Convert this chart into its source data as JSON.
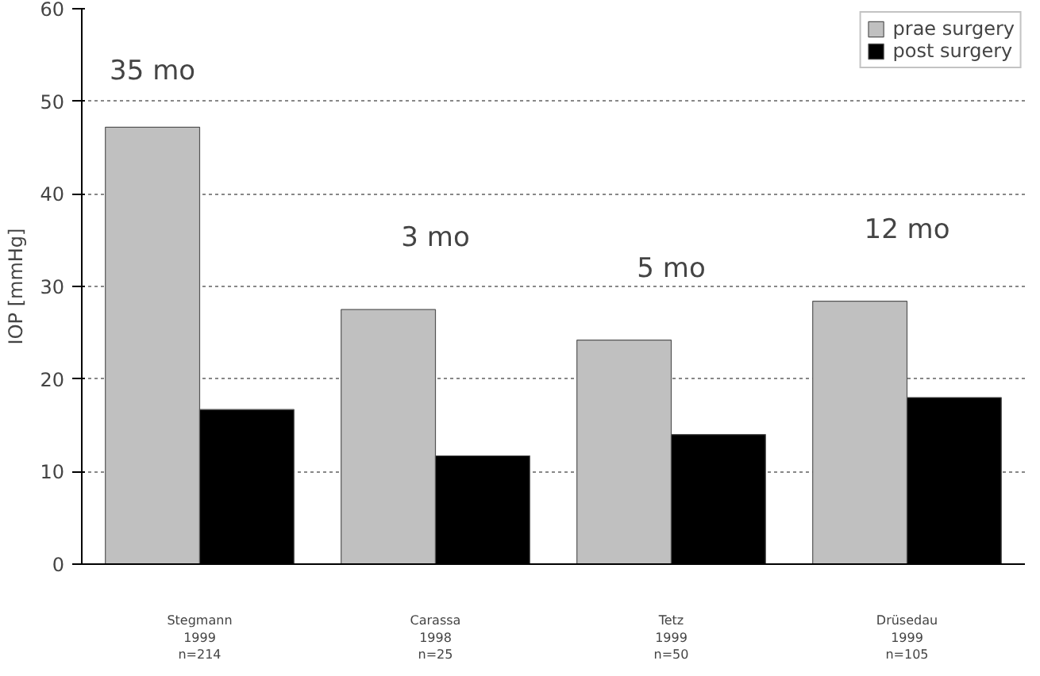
{
  "chart_data": {
    "type": "bar",
    "ylabel": "IOP [mmHg]",
    "categories": [
      "Stegmann\n1999\nn=214",
      "Carassa\n1998\nn=25",
      "Tetz\n1999\nn=50",
      "Drüsedau\n1999\nn=105"
    ],
    "series": [
      {
        "name": "prae surgery",
        "color": "#c0c0c0",
        "values": [
          47.2,
          27.5,
          24.2,
          28.4
        ]
      },
      {
        "name": "post surgery",
        "color": "#000000",
        "values": [
          16.7,
          11.7,
          14.0,
          18.0
        ]
      }
    ],
    "ylim": [
      0,
      60
    ],
    "yticks": [
      0,
      10,
      20,
      30,
      40,
      50,
      60
    ],
    "grid": "y",
    "legend": "top right",
    "annotations": [
      "35 mo",
      "3 mo",
      "5 mo",
      "12 mo"
    ]
  }
}
